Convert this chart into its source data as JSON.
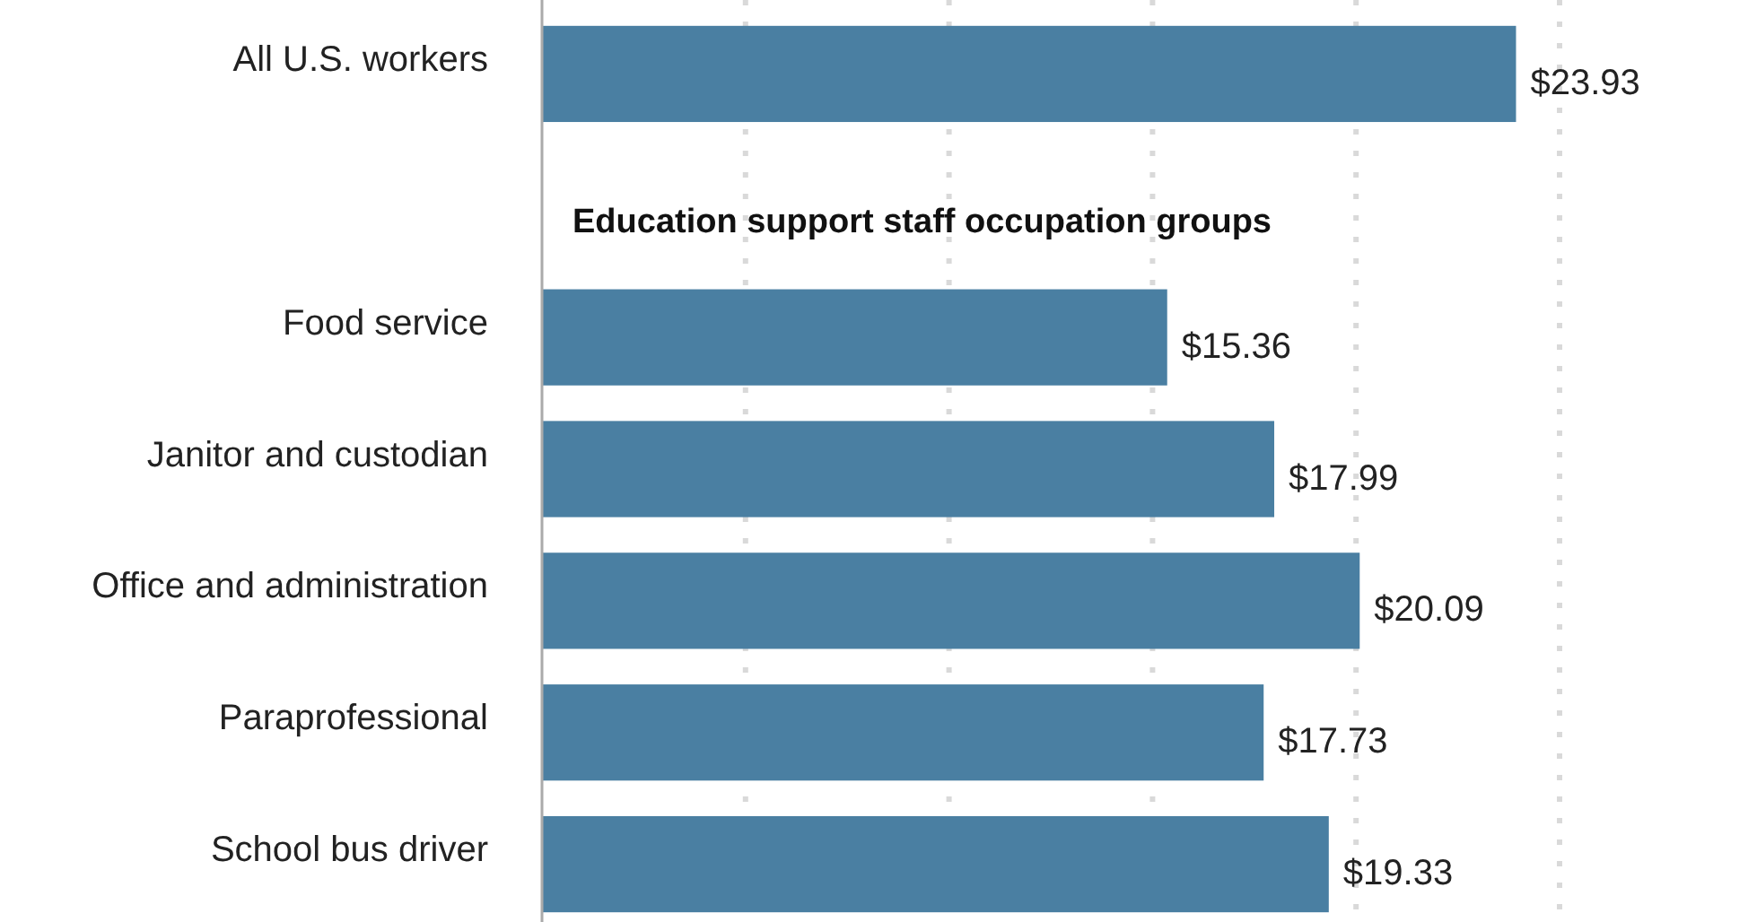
{
  "chart_data": {
    "type": "bar",
    "orientation": "horizontal",
    "categories": [
      "All U.S. workers",
      null,
      "Food service",
      "Janitor and custodian",
      "Office and administration",
      "Paraprofessional",
      "School bus driver"
    ],
    "values": [
      23.93,
      null,
      15.36,
      17.99,
      20.09,
      17.73,
      19.33
    ],
    "value_labels": [
      "$23.93",
      null,
      "$15.36",
      "$17.99",
      "$20.09",
      "$17.73",
      "$19.33"
    ],
    "color": "#4a7fa2",
    "xticks": [
      {
        "value": 5,
        "label": null
      },
      {
        "value": 10,
        "label": null
      },
      {
        "value": 15,
        "label": null
      },
      {
        "value": 20,
        "label": null
      },
      {
        "value": 25,
        "label": null
      }
    ],
    "grid": "x",
    "annotations": [
      "Education support staff occupation groups"
    ]
  }
}
